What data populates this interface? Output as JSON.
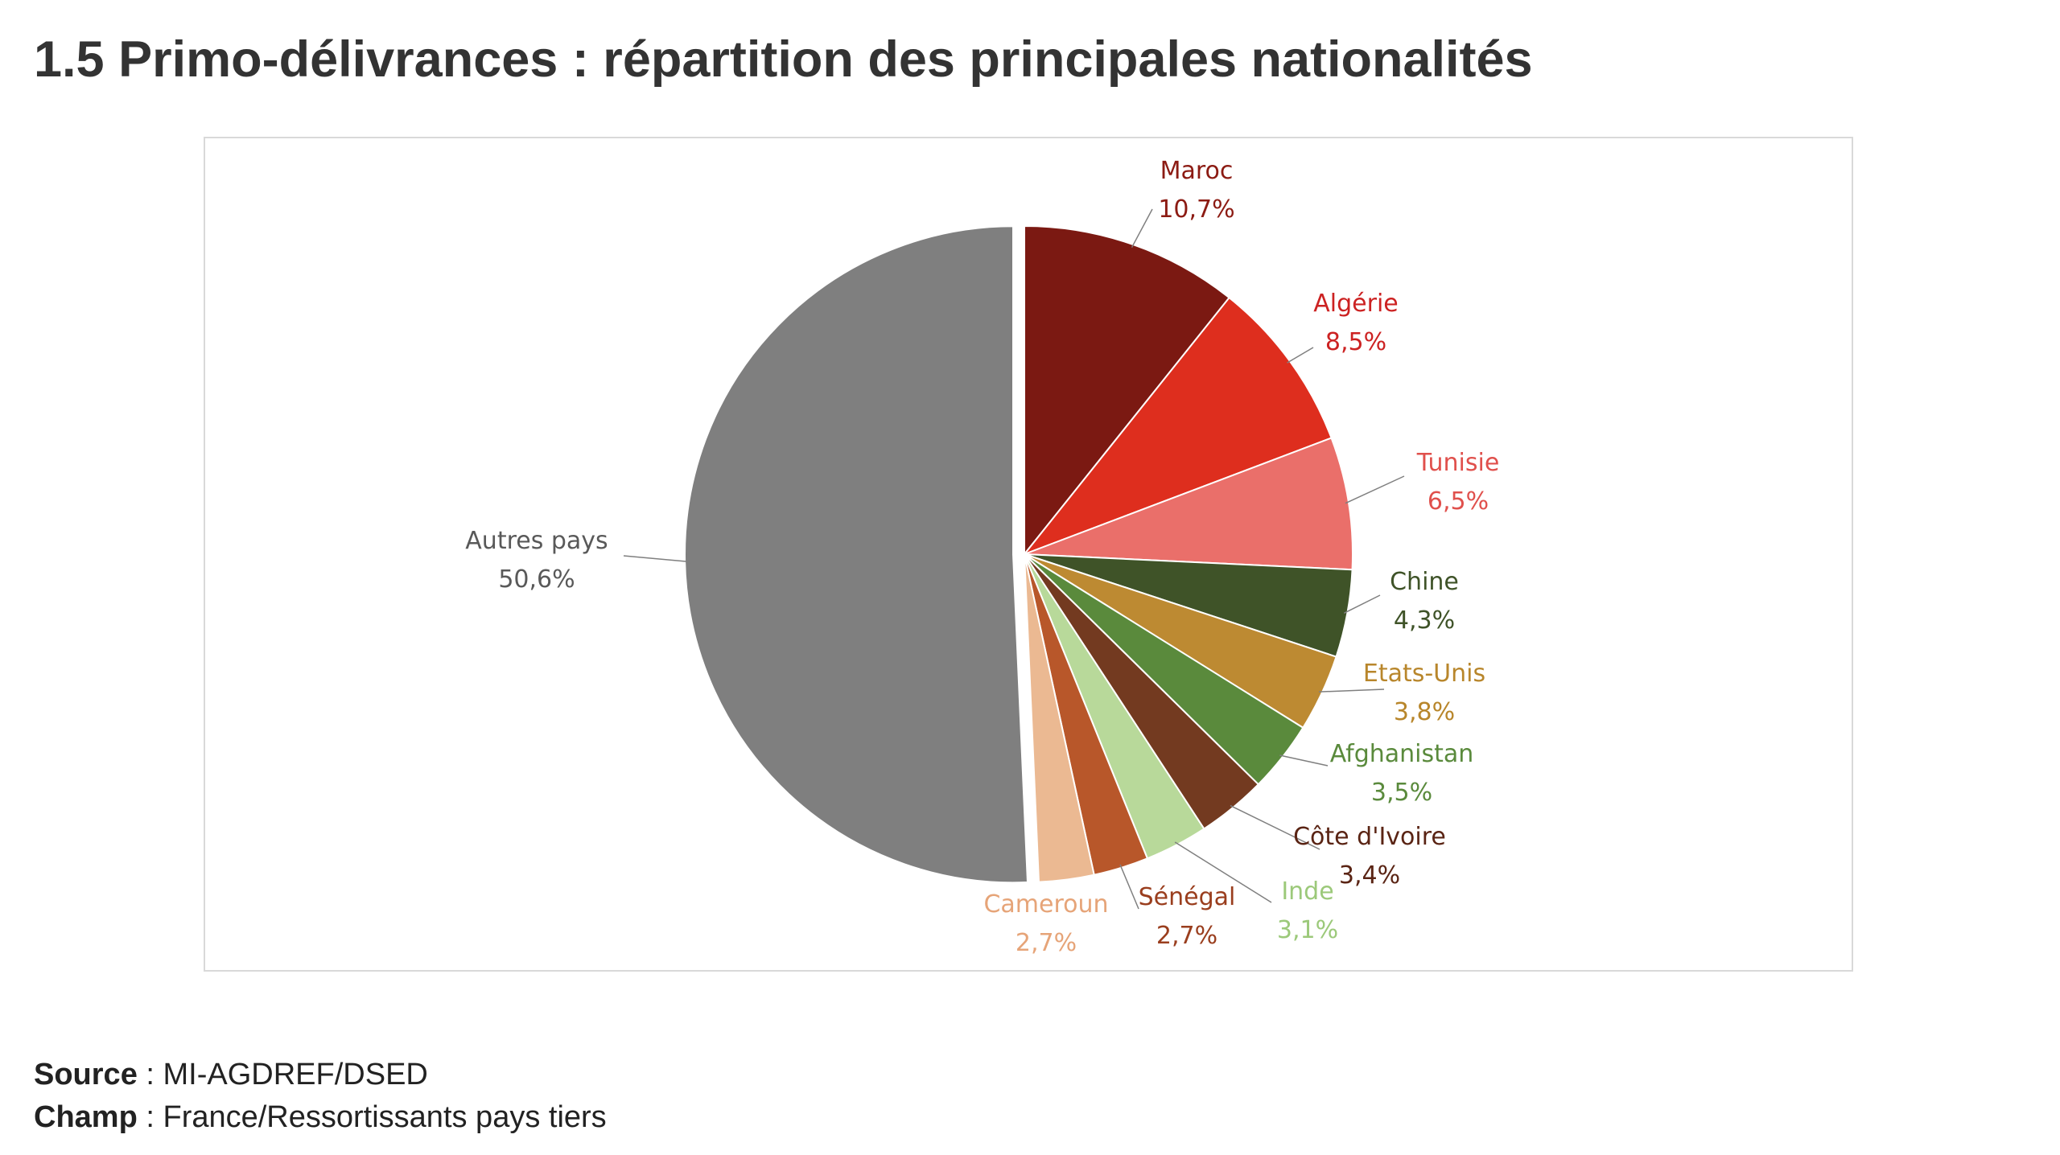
{
  "page": {
    "title": "1.5 Primo-délivrances : répartition des principales nationalités",
    "source_label": "Source",
    "source_sep": " : ",
    "source_value": "MI-AGDREF/DSED",
    "champ_label": "Champ",
    "champ_sep": " : ",
    "champ_value": "France/Ressortissants pays tiers"
  },
  "chart_data": {
    "type": "pie",
    "title": "",
    "start": "12 o'clock",
    "direction": "clockwise",
    "exploded": "Autres pays",
    "slices": [
      {
        "label": "Maroc",
        "value": 10.7,
        "value_label": "10,7%",
        "color": "#7b1912",
        "label_color": "#8c1b13"
      },
      {
        "label": "Algérie",
        "value": 8.5,
        "value_label": "8,5%",
        "color": "#de2e1e",
        "label_color": "#cc2222"
      },
      {
        "label": "Tunisie",
        "value": 6.5,
        "value_label": "6,5%",
        "color": "#ea6f6a",
        "label_color": "#e0504c"
      },
      {
        "label": "Chine",
        "value": 4.3,
        "value_label": "4,3%",
        "color": "#3f5328",
        "label_color": "#3f5328"
      },
      {
        "label": "Etats-Unis",
        "value": 3.8,
        "value_label": "3,8%",
        "color": "#bd8a32",
        "label_color": "#b8862b"
      },
      {
        "label": "Afghanistan",
        "value": 3.5,
        "value_label": "3,5%",
        "color": "#5a8a3c",
        "label_color": "#5a8a3c"
      },
      {
        "label": "Côte d'Ivoire",
        "value": 3.4,
        "value_label": "3,4%",
        "color": "#733a20",
        "label_color": "#5a2414"
      },
      {
        "label": "Inde",
        "value": 3.1,
        "value_label": "3,1%",
        "color": "#b8d99a",
        "label_color": "#9cc97a"
      },
      {
        "label": "Sénégal",
        "value": 2.7,
        "value_label": "2,7%",
        "color": "#b8572a",
        "label_color": "#9a3e1e"
      },
      {
        "label": "Cameroun",
        "value": 2.7,
        "value_label": "2,7%",
        "color": "#ebb992",
        "label_color": "#e6a478"
      },
      {
        "label": "Autres pays",
        "value": 50.6,
        "value_label": "50,6%",
        "color": "#7f7f7f",
        "label_color": "#595959"
      }
    ]
  }
}
